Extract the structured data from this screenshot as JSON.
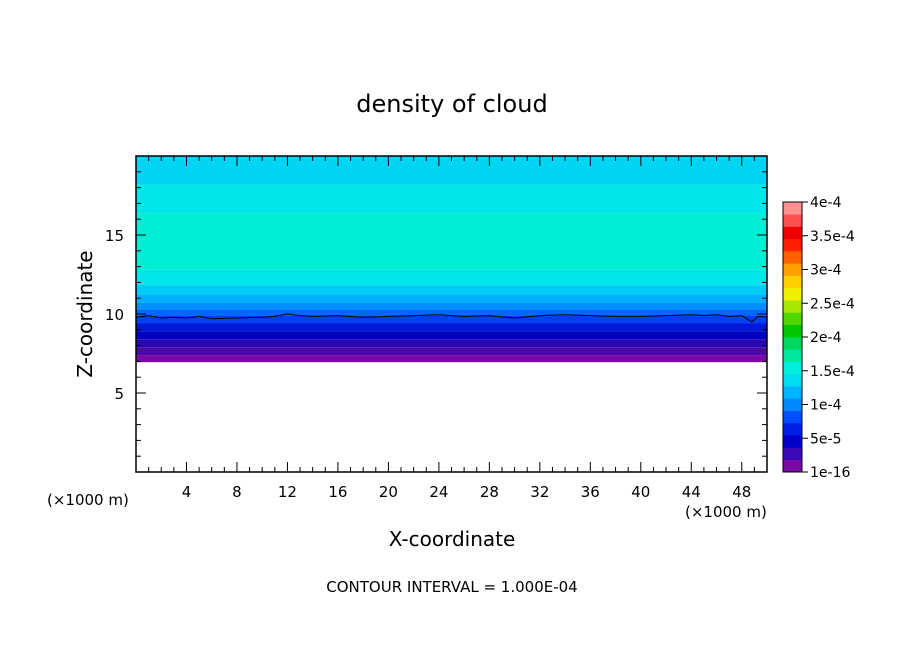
{
  "chart_data": {
    "type": "contour",
    "title": "density of cloud",
    "xlabel": "X-coordinate",
    "ylabel": "Z-coordinate",
    "x_unit_left": "(×1000 m)",
    "x_unit_right": "(×1000 m)",
    "footer": "CONTOUR INTERVAL = 1.000E-04",
    "xlim": [
      0,
      50
    ],
    "ylim": [
      0,
      20
    ],
    "x_ticks": [
      4,
      8,
      12,
      16,
      20,
      24,
      28,
      32,
      36,
      40,
      44,
      48
    ],
    "y_ticks": [
      5,
      10,
      15
    ],
    "colorbar": {
      "labels": [
        "4e-4",
        "3.5e-4",
        "3e-4",
        "2.5e-4",
        "2e-4",
        "1.5e-4",
        "1e-4",
        "5e-5",
        "1e-16"
      ],
      "colors_bottom_to_top": [
        "#7a0aa8",
        "#3a0ab8",
        "#0000c8",
        "#0020e8",
        "#0050ff",
        "#0088ff",
        "#00b4ff",
        "#00dcf0",
        "#00eedc",
        "#00e8a0",
        "#00d860",
        "#00c800",
        "#50d800",
        "#a8e800",
        "#f0f000",
        "#ffd000",
        "#ffa000",
        "#ff6000",
        "#ff2000",
        "#f00000",
        "#ff5050",
        "#ff9090"
      ]
    },
    "layers": [
      {
        "z_from": 18.2,
        "z_to": 20.0,
        "color": "#00d4f4"
      },
      {
        "z_from": 16.4,
        "z_to": 18.2,
        "color": "#00e4ea"
      },
      {
        "z_from": 12.8,
        "z_to": 16.4,
        "color": "#00efd4"
      },
      {
        "z_from": 11.8,
        "z_to": 12.8,
        "color": "#00e4ea"
      },
      {
        "z_from": 11.2,
        "z_to": 11.8,
        "color": "#00ccf6"
      },
      {
        "z_from": 10.7,
        "z_to": 11.2,
        "color": "#00b0ff"
      },
      {
        "z_from": 10.3,
        "z_to": 10.7,
        "color": "#0090ff"
      },
      {
        "z_from": 9.9,
        "z_to": 10.3,
        "color": "#0068ff"
      },
      {
        "z_from": 9.4,
        "z_to": 9.9,
        "color": "#0040f0"
      },
      {
        "z_from": 8.9,
        "z_to": 9.4,
        "color": "#0018d8"
      },
      {
        "z_from": 8.4,
        "z_to": 8.9,
        "color": "#0000c0"
      },
      {
        "z_from": 7.9,
        "z_to": 8.4,
        "color": "#2808b0"
      },
      {
        "z_from": 7.4,
        "z_to": 7.9,
        "color": "#4a08a8"
      },
      {
        "z_from": 6.95,
        "z_to": 7.4,
        "color": "#7a0aa8"
      }
    ],
    "contour_line": {
      "level": "1e-4",
      "points": [
        [
          0,
          9.8
        ],
        [
          1,
          9.9
        ],
        [
          2,
          9.75
        ],
        [
          3,
          9.8
        ],
        [
          4,
          9.75
        ],
        [
          5,
          9.85
        ],
        [
          6,
          9.7
        ],
        [
          8,
          9.75
        ],
        [
          10,
          9.8
        ],
        [
          11,
          9.85
        ],
        [
          12,
          10.0
        ],
        [
          13,
          9.9
        ],
        [
          14,
          9.85
        ],
        [
          16,
          9.9
        ],
        [
          18,
          9.8
        ],
        [
          20,
          9.85
        ],
        [
          22,
          9.9
        ],
        [
          24,
          9.95
        ],
        [
          26,
          9.85
        ],
        [
          28,
          9.9
        ],
        [
          30,
          9.75
        ],
        [
          32,
          9.9
        ],
        [
          34,
          9.95
        ],
        [
          36,
          9.9
        ],
        [
          38,
          9.85
        ],
        [
          40,
          9.85
        ],
        [
          42,
          9.9
        ],
        [
          44,
          9.95
        ],
        [
          45,
          9.9
        ],
        [
          46,
          9.95
        ],
        [
          47,
          9.85
        ],
        [
          48,
          9.9
        ],
        [
          48.8,
          9.5
        ],
        [
          49.3,
          9.85
        ],
        [
          50,
          9.8
        ]
      ]
    }
  }
}
